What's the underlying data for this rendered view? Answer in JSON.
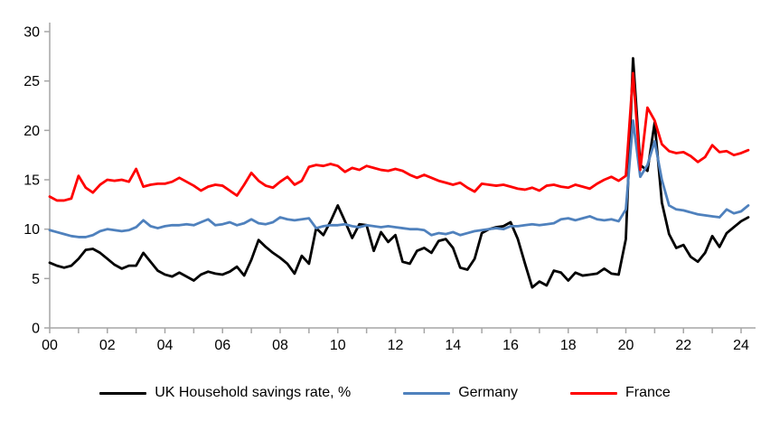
{
  "page": {
    "background": "#FFFFFF"
  },
  "chart_data": {
    "type": "line",
    "title": "",
    "frequency": "quarterly",
    "grid": "off",
    "legend_position": "bottom",
    "axis_color": "#A6A6A6",
    "text_color": "#000000",
    "x_axis": {
      "min_year": 2000,
      "max_year": 2024,
      "points_start": "2000 Q1",
      "points_step_years": 0.25,
      "tick_labels": [
        "00",
        "02",
        "04",
        "06",
        "08",
        "10",
        "12",
        "14",
        "16",
        "18",
        "20",
        "22",
        "24"
      ],
      "minor_tick_every_years": 1,
      "label_every_years": 2
    },
    "y_axis": {
      "min": 0,
      "max": 30,
      "ticks": [
        0,
        5,
        10,
        15,
        20,
        25,
        30
      ]
    },
    "series": [
      {
        "name": "UK Household savings rate, %",
        "color": "#000000",
        "values": [
          6.6,
          6.3,
          6.1,
          6.3,
          7.0,
          7.9,
          8.0,
          7.6,
          7.0,
          6.4,
          6.0,
          6.3,
          6.3,
          7.6,
          6.7,
          5.8,
          5.4,
          5.2,
          5.6,
          5.2,
          4.8,
          5.4,
          5.7,
          5.5,
          5.4,
          5.7,
          6.2,
          5.3,
          6.9,
          8.9,
          8.2,
          7.6,
          7.1,
          6.5,
          5.5,
          7.3,
          6.5,
          10.1,
          9.4,
          10.8,
          12.4,
          10.8,
          9.1,
          10.5,
          10.4,
          7.8,
          9.7,
          8.7,
          9.4,
          6.7,
          6.5,
          7.8,
          8.1,
          7.6,
          8.8,
          9.0,
          8.1,
          6.1,
          5.9,
          7.0,
          9.6,
          10.0,
          10.2,
          10.3,
          10.7,
          9.0,
          6.5,
          4.1,
          4.7,
          4.3,
          5.8,
          5.6,
          4.8,
          5.6,
          5.3,
          5.4,
          5.5,
          6.0,
          5.5,
          5.4,
          9.0,
          27.3,
          16.5,
          15.9,
          20.8,
          12.7,
          9.5,
          8.1,
          8.4,
          7.2,
          6.7,
          7.6,
          9.3,
          8.2,
          9.6,
          10.2,
          10.8,
          11.2
        ]
      },
      {
        "name": "Germany",
        "color": "#4F81BD",
        "values": [
          9.9,
          9.7,
          9.5,
          9.3,
          9.2,
          9.2,
          9.4,
          9.8,
          10.0,
          9.9,
          9.8,
          9.9,
          10.2,
          10.9,
          10.3,
          10.1,
          10.3,
          10.4,
          10.4,
          10.5,
          10.4,
          10.7,
          11.0,
          10.4,
          10.5,
          10.7,
          10.4,
          10.6,
          11.0,
          10.6,
          10.5,
          10.7,
          11.2,
          11.0,
          10.9,
          11.0,
          11.1,
          10.1,
          10.3,
          10.4,
          10.4,
          10.5,
          10.3,
          10.2,
          10.4,
          10.3,
          10.2,
          10.3,
          10.2,
          10.1,
          10.0,
          10.0,
          9.9,
          9.4,
          9.6,
          9.5,
          9.7,
          9.4,
          9.6,
          9.8,
          9.9,
          10.0,
          10.1,
          10.0,
          10.3,
          10.3,
          10.4,
          10.5,
          10.4,
          10.5,
          10.6,
          11.0,
          11.1,
          10.9,
          11.1,
          11.3,
          11.0,
          10.9,
          11.0,
          10.8,
          12.0,
          21.0,
          15.3,
          16.5,
          18.9,
          15.0,
          12.4,
          12.0,
          11.9,
          11.7,
          11.5,
          11.4,
          11.3,
          11.2,
          12.0,
          11.6,
          11.8,
          12.4
        ]
      },
      {
        "name": "France",
        "color": "#FF0000",
        "values": [
          13.3,
          12.9,
          12.9,
          13.1,
          15.4,
          14.2,
          13.7,
          14.5,
          15.0,
          14.9,
          15.0,
          14.8,
          16.1,
          14.3,
          14.5,
          14.6,
          14.6,
          14.8,
          15.2,
          14.8,
          14.4,
          13.9,
          14.3,
          14.5,
          14.4,
          13.9,
          13.4,
          14.5,
          15.7,
          14.9,
          14.4,
          14.2,
          14.8,
          15.3,
          14.5,
          14.9,
          16.3,
          16.5,
          16.4,
          16.6,
          16.4,
          15.8,
          16.2,
          16.0,
          16.4,
          16.2,
          16.0,
          15.9,
          16.1,
          15.9,
          15.5,
          15.2,
          15.5,
          15.2,
          14.9,
          14.7,
          14.5,
          14.7,
          14.2,
          13.8,
          14.6,
          14.5,
          14.4,
          14.5,
          14.3,
          14.1,
          14.0,
          14.2,
          13.9,
          14.4,
          14.5,
          14.3,
          14.2,
          14.5,
          14.3,
          14.1,
          14.6,
          15.0,
          15.3,
          14.9,
          15.4,
          25.8,
          16.0,
          22.3,
          21.0,
          18.6,
          17.9,
          17.7,
          17.8,
          17.4,
          16.8,
          17.3,
          18.5,
          17.8,
          17.9,
          17.5,
          17.7,
          18.0
        ]
      }
    ]
  }
}
